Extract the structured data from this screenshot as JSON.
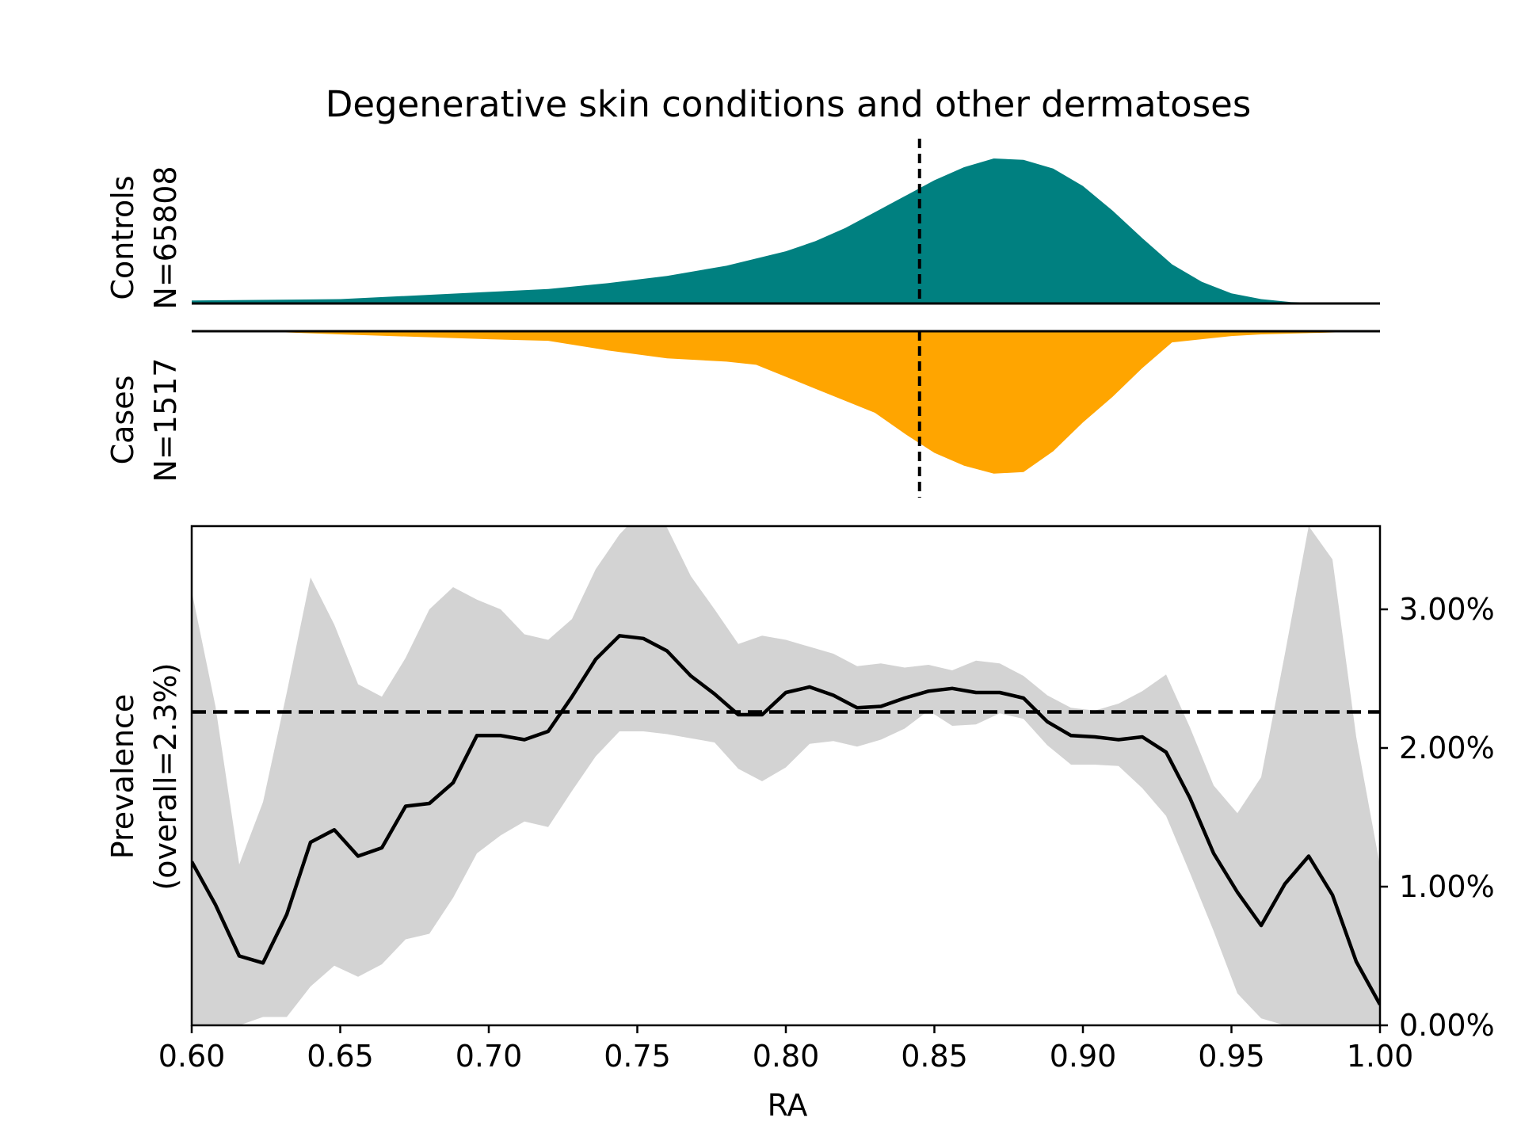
{
  "title": "Degenerative skin conditions and other dermatoses",
  "colors": {
    "controls": "#008080",
    "cases": "#ffa500",
    "ci_band": "#d3d3d3",
    "line": "#000000"
  },
  "chart_data": [
    {
      "type": "area",
      "panel": "controls-density",
      "label_line1": "Controls",
      "label_line2": "N=65808",
      "x": [
        0.6,
        0.65,
        0.7,
        0.72,
        0.74,
        0.76,
        0.78,
        0.79,
        0.8,
        0.81,
        0.82,
        0.83,
        0.84,
        0.85,
        0.86,
        0.87,
        0.88,
        0.89,
        0.9,
        0.91,
        0.92,
        0.93,
        0.94,
        0.95,
        0.96,
        0.97,
        0.98,
        1.0
      ],
      "y": [
        0.02,
        0.03,
        0.08,
        0.1,
        0.14,
        0.19,
        0.26,
        0.31,
        0.36,
        0.43,
        0.52,
        0.63,
        0.74,
        0.85,
        0.94,
        1.0,
        0.99,
        0.93,
        0.81,
        0.64,
        0.45,
        0.27,
        0.15,
        0.07,
        0.03,
        0.01,
        0.005,
        0.0
      ],
      "marker_x": 0.845
    },
    {
      "type": "area",
      "panel": "cases-density",
      "label_line1": "Cases",
      "label_line2": "N=1517",
      "x": [
        0.6,
        0.62,
        0.65,
        0.7,
        0.72,
        0.74,
        0.76,
        0.78,
        0.79,
        0.81,
        0.83,
        0.84,
        0.85,
        0.86,
        0.87,
        0.88,
        0.89,
        0.9,
        0.91,
        0.92,
        0.93,
        0.94,
        0.95,
        0.96,
        0.98,
        1.0
      ],
      "y": [
        0.0,
        0.0,
        0.02,
        0.05,
        0.06,
        0.12,
        0.17,
        0.19,
        0.21,
        0.36,
        0.51,
        0.64,
        0.76,
        0.84,
        0.89,
        0.88,
        0.75,
        0.57,
        0.41,
        0.23,
        0.07,
        0.05,
        0.03,
        0.02,
        0.01,
        0.0
      ],
      "marker_x": 0.845
    },
    {
      "type": "line",
      "panel": "prevalence",
      "xlabel": "RA",
      "ylabel_line1": "Prevalence",
      "ylabel_line2": "(overall=2.3%)",
      "xlim": [
        0.6,
        1.0
      ],
      "ylim": [
        0.0,
        3.6
      ],
      "xticks": [
        0.6,
        0.65,
        0.7,
        0.75,
        0.8,
        0.85,
        0.9,
        0.95,
        1.0
      ],
      "xtick_labels": [
        "0.60",
        "0.65",
        "0.70",
        "0.75",
        "0.80",
        "0.85",
        "0.90",
        "0.95",
        "1.00"
      ],
      "yticks": [
        0,
        1,
        2,
        3
      ],
      "ytick_labels": [
        "0.00%",
        "1.00%",
        "2.00%",
        "3.00%"
      ],
      "overall": 2.26,
      "x": [
        0.6,
        0.608,
        0.616,
        0.624,
        0.632,
        0.64,
        0.648,
        0.656,
        0.664,
        0.672,
        0.68,
        0.688,
        0.696,
        0.704,
        0.712,
        0.72,
        0.728,
        0.736,
        0.744,
        0.752,
        0.76,
        0.768,
        0.776,
        0.784,
        0.792,
        0.8,
        0.808,
        0.816,
        0.824,
        0.832,
        0.84,
        0.848,
        0.856,
        0.864,
        0.872,
        0.88,
        0.888,
        0.896,
        0.904,
        0.912,
        0.92,
        0.928,
        0.936,
        0.944,
        0.952,
        0.96,
        0.968,
        0.976,
        0.984,
        0.992,
        1.0
      ],
      "y": [
        1.18,
        0.87,
        0.5,
        0.45,
        0.8,
        1.32,
        1.41,
        1.22,
        1.28,
        1.58,
        1.6,
        1.75,
        2.09,
        2.09,
        2.06,
        2.12,
        2.37,
        2.64,
        2.81,
        2.79,
        2.7,
        2.52,
        2.39,
        2.24,
        2.24,
        2.4,
        2.44,
        2.38,
        2.29,
        2.3,
        2.36,
        2.41,
        2.43,
        2.4,
        2.4,
        2.36,
        2.19,
        2.09,
        2.08,
        2.06,
        2.08,
        1.97,
        1.64,
        1.24,
        0.96,
        0.72,
        1.02,
        1.22,
        0.94,
        0.46,
        0.15
      ],
      "ci_upper": [
        3.13,
        2.3,
        1.16,
        1.61,
        2.4,
        3.23,
        2.89,
        2.46,
        2.37,
        2.65,
        3.0,
        3.16,
        3.07,
        3.0,
        2.82,
        2.78,
        2.93,
        3.29,
        3.54,
        3.72,
        3.59,
        3.24,
        3.0,
        2.75,
        2.81,
        2.78,
        2.73,
        2.68,
        2.59,
        2.61,
        2.58,
        2.6,
        2.56,
        2.63,
        2.61,
        2.52,
        2.38,
        2.29,
        2.27,
        2.32,
        2.41,
        2.53,
        2.15,
        1.73,
        1.53,
        1.79,
        2.68,
        3.6,
        3.36,
        2.08,
        1.15
      ],
      "ci_lower": [
        0.0,
        0.0,
        0.0,
        0.06,
        0.06,
        0.28,
        0.43,
        0.35,
        0.44,
        0.62,
        0.66,
        0.92,
        1.24,
        1.37,
        1.47,
        1.43,
        1.69,
        1.94,
        2.12,
        2.12,
        2.1,
        2.07,
        2.04,
        1.85,
        1.76,
        1.86,
        2.03,
        2.05,
        2.01,
        2.06,
        2.14,
        2.27,
        2.16,
        2.17,
        2.25,
        2.21,
        2.02,
        1.88,
        1.88,
        1.87,
        1.71,
        1.51,
        1.1,
        0.68,
        0.23,
        0.05,
        0.0,
        0.0,
        0.0,
        0.0,
        0.0
      ]
    }
  ]
}
